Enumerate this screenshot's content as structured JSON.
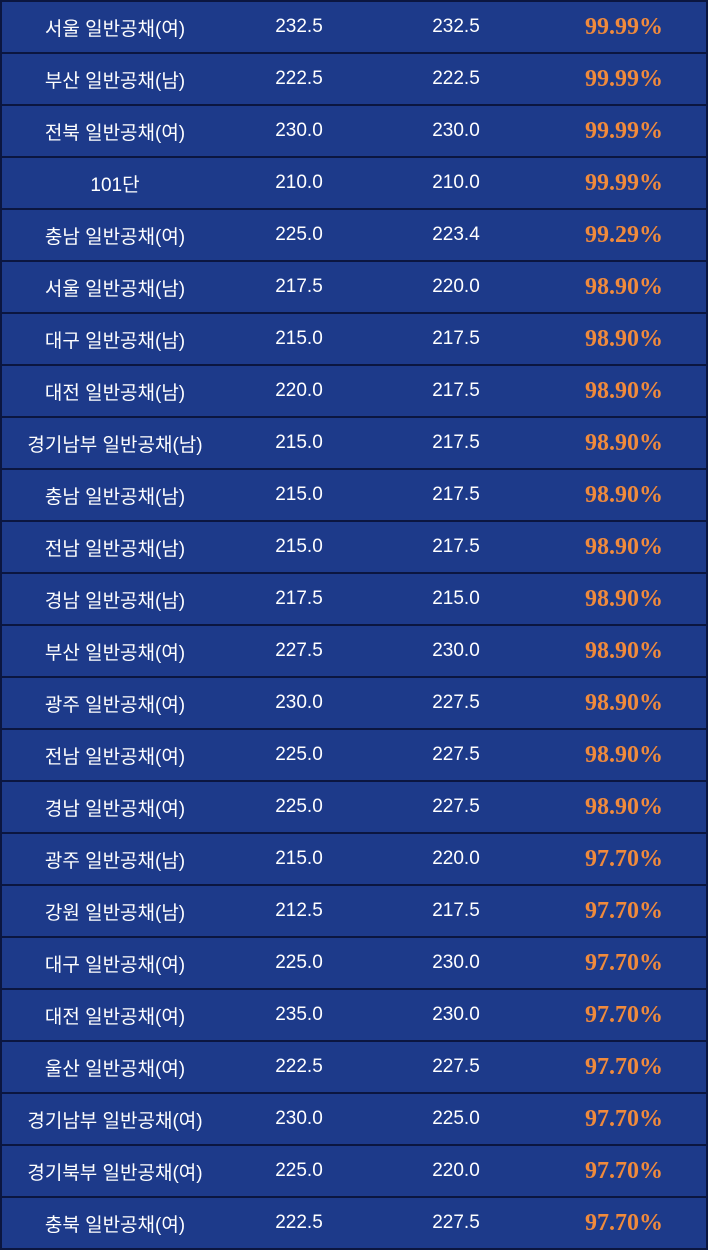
{
  "rows": [
    {
      "name": "서울 일반공채(여)",
      "v1": "232.5",
      "v2": "232.5",
      "pct": "99.99%"
    },
    {
      "name": "부산 일반공채(남)",
      "v1": "222.5",
      "v2": "222.5",
      "pct": "99.99%"
    },
    {
      "name": "전북 일반공채(여)",
      "v1": "230.0",
      "v2": "230.0",
      "pct": "99.99%"
    },
    {
      "name": "101단",
      "v1": "210.0",
      "v2": "210.0",
      "pct": "99.99%"
    },
    {
      "name": "충남 일반공채(여)",
      "v1": "225.0",
      "v2": "223.4",
      "pct": "99.29%"
    },
    {
      "name": "서울 일반공채(남)",
      "v1": "217.5",
      "v2": "220.0",
      "pct": "98.90%"
    },
    {
      "name": "대구 일반공채(남)",
      "v1": "215.0",
      "v2": "217.5",
      "pct": "98.90%"
    },
    {
      "name": "대전 일반공채(남)",
      "v1": "220.0",
      "v2": "217.5",
      "pct": "98.90%"
    },
    {
      "name": "경기남부 일반공채(남)",
      "v1": "215.0",
      "v2": "217.5",
      "pct": "98.90%"
    },
    {
      "name": "충남 일반공채(남)",
      "v1": "215.0",
      "v2": "217.5",
      "pct": "98.90%"
    },
    {
      "name": "전남 일반공채(남)",
      "v1": "215.0",
      "v2": "217.5",
      "pct": "98.90%"
    },
    {
      "name": "경남 일반공채(남)",
      "v1": "217.5",
      "v2": "215.0",
      "pct": "98.90%"
    },
    {
      "name": "부산 일반공채(여)",
      "v1": "227.5",
      "v2": "230.0",
      "pct": "98.90%"
    },
    {
      "name": "광주 일반공채(여)",
      "v1": "230.0",
      "v2": "227.5",
      "pct": "98.90%"
    },
    {
      "name": "전남 일반공채(여)",
      "v1": "225.0",
      "v2": "227.5",
      "pct": "98.90%"
    },
    {
      "name": "경남 일반공채(여)",
      "v1": "225.0",
      "v2": "227.5",
      "pct": "98.90%"
    },
    {
      "name": "광주 일반공채(남)",
      "v1": "215.0",
      "v2": "220.0",
      "pct": "97.70%"
    },
    {
      "name": "강원 일반공채(남)",
      "v1": "212.5",
      "v2": "217.5",
      "pct": "97.70%"
    },
    {
      "name": "대구 일반공채(여)",
      "v1": "225.0",
      "v2": "230.0",
      "pct": "97.70%"
    },
    {
      "name": "대전 일반공채(여)",
      "v1": "235.0",
      "v2": "230.0",
      "pct": "97.70%"
    },
    {
      "name": "울산 일반공채(여)",
      "v1": "222.5",
      "v2": "227.5",
      "pct": "97.70%"
    },
    {
      "name": "경기남부 일반공채(여)",
      "v1": "230.0",
      "v2": "225.0",
      "pct": "97.70%"
    },
    {
      "name": "경기북부 일반공채(여)",
      "v1": "225.0",
      "v2": "220.0",
      "pct": "97.70%"
    },
    {
      "name": "충북 일반공채(여)",
      "v1": "222.5",
      "v2": "227.5",
      "pct": "97.70%"
    }
  ],
  "colors": {
    "row_bg": "#1d3a8a",
    "border": "#0b1640",
    "text": "#ffffff",
    "percent": "#f08a3c"
  }
}
